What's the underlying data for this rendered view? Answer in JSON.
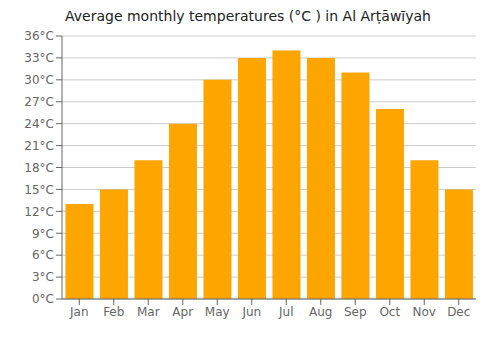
{
  "chart_data": {
    "type": "bar",
    "title": "Average monthly temperatures (°C ) in Al Arṭāwīyah",
    "categories": [
      "Jan",
      "Feb",
      "Mar",
      "Apr",
      "May",
      "Jun",
      "Jul",
      "Aug",
      "Sep",
      "Oct",
      "Nov",
      "Dec"
    ],
    "values": [
      13,
      15,
      19,
      24,
      30,
      33,
      34,
      33,
      31,
      26,
      19,
      15
    ],
    "color": "#FFA500",
    "ylim": [
      0,
      36
    ],
    "yticks": [
      {
        "value": 0,
        "label": "0°C"
      },
      {
        "value": 3,
        "label": "3°C"
      },
      {
        "value": 6,
        "label": "6°C"
      },
      {
        "value": 9,
        "label": "9°C"
      },
      {
        "value": 12,
        "label": "12°C"
      },
      {
        "value": 15,
        "label": "15°C"
      },
      {
        "value": 18,
        "label": "18°C"
      },
      {
        "value": 21,
        "label": "21°C"
      },
      {
        "value": 24,
        "label": "24°C"
      },
      {
        "value": 27,
        "label": "27°C"
      },
      {
        "value": 30,
        "label": "30°C"
      },
      {
        "value": 33,
        "label": "33°C"
      },
      {
        "value": 36,
        "label": "36°C"
      }
    ],
    "grid": true
  }
}
